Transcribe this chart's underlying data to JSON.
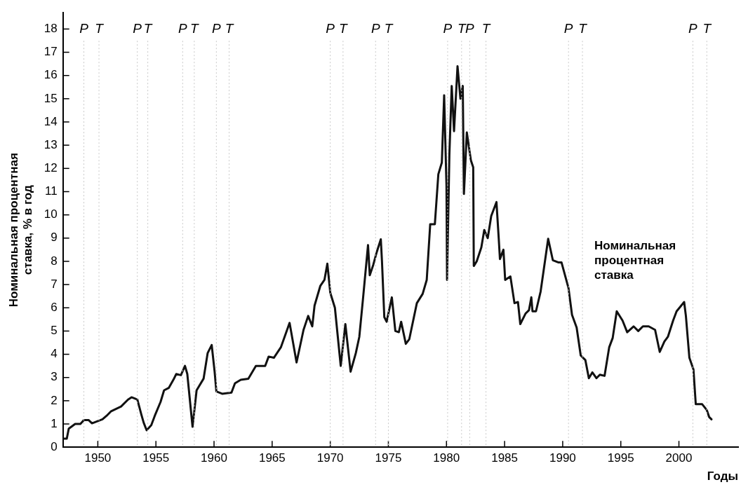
{
  "chart_data": {
    "type": "line",
    "xlabel": "Годы",
    "ylabel": "Номинальная процентная ставка, % в год",
    "xlim": [
      1947,
      2005.1
    ],
    "xticks": [
      1950,
      1955,
      1960,
      1965,
      1970,
      1975,
      1980,
      1985,
      1990,
      1995,
      2000
    ],
    "ylim": [
      0,
      18.7
    ],
    "yticks": [
      0,
      1,
      2,
      3,
      4,
      5,
      6,
      7,
      8,
      9,
      10,
      11,
      12,
      13,
      14,
      15,
      16,
      17,
      18
    ],
    "grid": false,
    "legend": false,
    "marker": "none",
    "line_style": "solid",
    "ref_lines": [
      {
        "axis": "x",
        "value": 1948.8,
        "label": "P",
        "color": "#c8c8c8",
        "line_style": "dotted"
      },
      {
        "axis": "x",
        "value": 1950.1,
        "label": "T",
        "color": "#c8c8c8",
        "line_style": "dotted"
      },
      {
        "axis": "x",
        "value": 1953.4,
        "label": "P",
        "color": "#c8c8c8",
        "line_style": "dotted"
      },
      {
        "axis": "x",
        "value": 1954.3,
        "label": "T",
        "color": "#c8c8c8",
        "line_style": "dotted"
      },
      {
        "axis": "x",
        "value": 1957.3,
        "label": "P",
        "color": "#c8c8c8",
        "line_style": "dotted"
      },
      {
        "axis": "x",
        "value": 1958.3,
        "label": "T",
        "color": "#c8c8c8",
        "line_style": "dotted"
      },
      {
        "axis": "x",
        "value": 1960.2,
        "label": "P",
        "color": "#c8c8c8",
        "line_style": "dotted"
      },
      {
        "axis": "x",
        "value": 1961.3,
        "label": "T",
        "color": "#c8c8c8",
        "line_style": "dotted"
      },
      {
        "axis": "x",
        "value": 1970.0,
        "label": "P",
        "color": "#c8c8c8",
        "line_style": "dotted"
      },
      {
        "axis": "x",
        "value": 1971.1,
        "label": "T",
        "color": "#c8c8c8",
        "line_style": "dotted"
      },
      {
        "axis": "x",
        "value": 1973.9,
        "label": "P",
        "color": "#c8c8c8",
        "line_style": "dotted"
      },
      {
        "axis": "x",
        "value": 1975.0,
        "label": "T",
        "color": "#c8c8c8",
        "line_style": "dotted"
      },
      {
        "axis": "x",
        "value": 1980.1,
        "label": "P",
        "color": "#c8c8c8",
        "line_style": "dotted"
      },
      {
        "axis": "x",
        "value": 1981.3,
        "label": "T",
        "color": "#c8c8c8",
        "line_style": "dotted"
      },
      {
        "axis": "x",
        "value": 1982.0,
        "label": "P",
        "color": "#c8c8c8",
        "line_style": "dotted"
      },
      {
        "axis": "x",
        "value": 1983.4,
        "label": "T",
        "color": "#c8c8c8",
        "line_style": "dotted"
      },
      {
        "axis": "x",
        "value": 1990.5,
        "label": "P",
        "color": "#c8c8c8",
        "line_style": "dotted"
      },
      {
        "axis": "x",
        "value": 1991.7,
        "label": "T",
        "color": "#c8c8c8",
        "line_style": "dotted"
      },
      {
        "axis": "x",
        "value": 2001.2,
        "label": "P",
        "color": "#c8c8c8",
        "line_style": "dotted"
      },
      {
        "axis": "x",
        "value": 2002.4,
        "label": "T",
        "color": "#c8c8c8",
        "line_style": "dotted"
      }
    ],
    "series": [
      {
        "name": "Номинальная процентная ставка",
        "color": "#111111",
        "x": [
          1947.0,
          1947.33,
          1947.5,
          1948.05,
          1948.5,
          1948.8,
          1949.2,
          1949.5,
          1950.4,
          1950.75,
          1951.15,
          1952.0,
          1952.6,
          1952.9,
          1953.4,
          1953.75,
          1953.95,
          1954.2,
          1954.6,
          1954.9,
          1955.4,
          1955.7,
          1956.1,
          1956.5,
          1956.75,
          1957.15,
          1957.5,
          1957.7,
          1958.15,
          1958.5,
          1959.1,
          1959.45,
          1959.8,
          1960.05,
          1960.2,
          1960.7,
          1961.5,
          1961.8,
          1962.3,
          1962.95,
          1963.6,
          1964.4,
          1964.7,
          1965.15,
          1965.75,
          1966.5,
          1967.1,
          1967.4,
          1967.7,
          1968.1,
          1968.45,
          1968.65,
          1969.15,
          1969.5,
          1969.75,
          1970.0,
          1970.4,
          1970.9,
          1971.3,
          1971.75,
          1972.2,
          1972.5,
          1972.8,
          1973.25,
          1973.4,
          1973.7,
          1974.0,
          1974.35,
          1974.45,
          1974.65,
          1974.85,
          1975.3,
          1975.6,
          1975.9,
          1976.1,
          1976.5,
          1976.8,
          1977.45,
          1977.95,
          1978.3,
          1978.6,
          1979.0,
          1979.3,
          1979.6,
          1979.8,
          1980.0,
          1980.05,
          1980.25,
          1980.45,
          1980.65,
          1980.95,
          1981.2,
          1981.4,
          1981.5,
          1981.75,
          1982.1,
          1982.3,
          1982.35,
          1982.6,
          1983.0,
          1983.25,
          1983.55,
          1983.85,
          1984.3,
          1984.5,
          1984.6,
          1984.9,
          1985.05,
          1985.5,
          1985.85,
          1986.15,
          1986.35,
          1986.8,
          1987.1,
          1987.3,
          1987.4,
          1987.7,
          1988.1,
          1988.75,
          1989.15,
          1989.65,
          1989.9,
          1990.5,
          1990.8,
          1991.2,
          1991.55,
          1991.95,
          1992.25,
          1992.55,
          1992.9,
          1993.2,
          1993.6,
          1994.0,
          1994.3,
          1994.65,
          1995.15,
          1995.55,
          1996.1,
          1996.5,
          1996.9,
          1997.4,
          1997.95,
          1998.35,
          1998.75,
          1999.05,
          1999.5,
          1999.8,
          2000.45,
          2000.6,
          2000.9,
          2001.25,
          2001.45,
          2002.0,
          2002.4,
          2002.6,
          2002.8
        ],
        "values": [
          0.37,
          0.37,
          0.8,
          1.0,
          1.0,
          1.17,
          1.17,
          1.03,
          1.2,
          1.35,
          1.55,
          1.75,
          2.05,
          2.15,
          2.05,
          1.4,
          1.05,
          0.73,
          0.95,
          1.35,
          1.95,
          2.45,
          2.55,
          2.9,
          3.15,
          3.1,
          3.5,
          3.15,
          0.88,
          2.45,
          2.95,
          4.05,
          4.4,
          3.25,
          2.4,
          2.3,
          2.35,
          2.75,
          2.9,
          2.95,
          3.5,
          3.5,
          3.9,
          3.85,
          4.3,
          5.35,
          3.65,
          4.35,
          5.05,
          5.65,
          5.2,
          6.1,
          6.95,
          7.2,
          7.9,
          6.65,
          6.0,
          3.5,
          5.3,
          3.25,
          4.05,
          4.75,
          6.3,
          8.7,
          7.4,
          7.85,
          8.4,
          8.95,
          8.0,
          5.6,
          5.4,
          6.45,
          5.0,
          4.95,
          5.4,
          4.45,
          4.65,
          6.2,
          6.6,
          7.2,
          9.6,
          9.6,
          11.75,
          12.25,
          15.15,
          11.25,
          7.2,
          12.6,
          15.55,
          13.6,
          16.4,
          15.0,
          15.55,
          10.9,
          13.55,
          12.35,
          12.05,
          7.8,
          8.0,
          8.6,
          9.35,
          9.0,
          9.95,
          10.55,
          8.95,
          8.1,
          8.5,
          7.2,
          7.35,
          6.2,
          6.25,
          5.3,
          5.75,
          5.9,
          6.45,
          5.85,
          5.85,
          6.7,
          8.97,
          8.05,
          7.95,
          7.95,
          6.85,
          5.7,
          5.15,
          3.95,
          3.75,
          2.97,
          3.22,
          2.97,
          3.12,
          3.07,
          4.3,
          4.7,
          5.85,
          5.45,
          4.95,
          5.2,
          5.0,
          5.2,
          5.2,
          5.05,
          4.1,
          4.55,
          4.75,
          5.45,
          5.85,
          6.25,
          5.65,
          3.85,
          3.35,
          1.85,
          1.85,
          1.6,
          1.3,
          1.2
        ]
      }
    ]
  }
}
